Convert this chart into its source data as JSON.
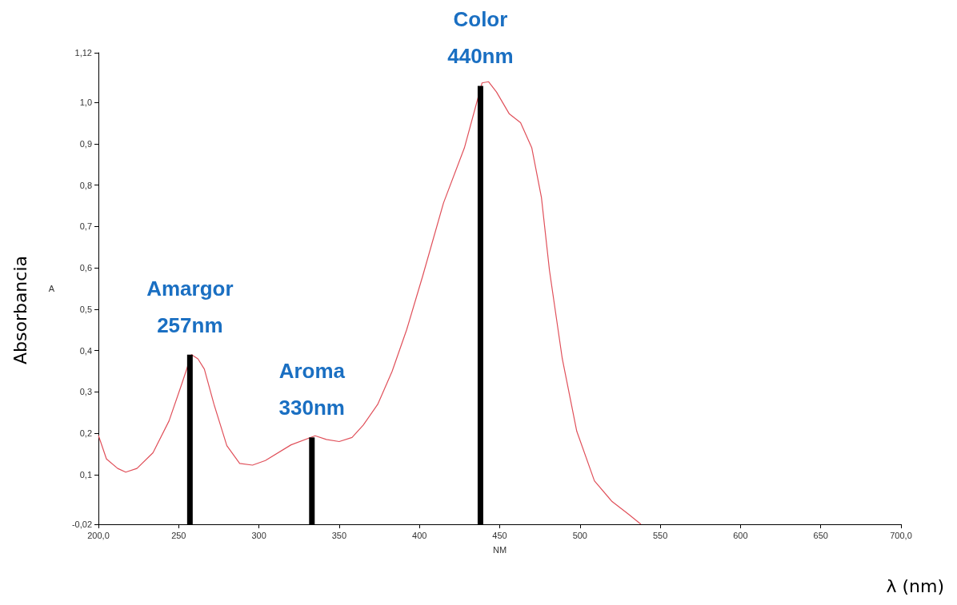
{
  "chart_data": {
    "type": "line",
    "xlabel": "NM",
    "ylabel": "A",
    "marker": "none",
    "xlim": [
      200,
      700
    ],
    "xticks": [
      {
        "value": 200,
        "label": "200,0"
      },
      250,
      300,
      350,
      400,
      450,
      500,
      550,
      600,
      650,
      {
        "value": 700,
        "label": "700,0"
      }
    ],
    "ylim": [
      -0.02,
      1.12
    ],
    "yticks": [
      {
        "value": -0.02,
        "label": "-0,02"
      },
      {
        "value": 0.1,
        "label": "0,1"
      },
      {
        "value": 0.2,
        "label": "0,2"
      },
      {
        "value": 0.3,
        "label": "0,3"
      },
      {
        "value": 0.4,
        "label": "0,4"
      },
      {
        "value": 0.5,
        "label": "0,5"
      },
      {
        "value": 0.6,
        "label": "0,6"
      },
      {
        "value": 0.7,
        "label": "0,7"
      },
      {
        "value": 0.8,
        "label": "0,8"
      },
      {
        "value": 0.9,
        "label": "0,9"
      },
      {
        "value": 1.0,
        "label": "1,0"
      },
      {
        "value": 1.12,
        "label": "1,12"
      }
    ],
    "series": [
      {
        "color": "#e0505a",
        "x": [
          200,
          205,
          212,
          217,
          224,
          234,
          244,
          252,
          258,
          262,
          266,
          272,
          280,
          288,
          296,
          304,
          320,
          335,
          342,
          350,
          358,
          365,
          374,
          383,
          392,
          402,
          415,
          428,
          439,
          443,
          448,
          456,
          463,
          470,
          476,
          481,
          489,
          498,
          509,
          520,
          530,
          538
        ],
        "values": [
          0.195,
          0.138,
          0.115,
          0.106,
          0.115,
          0.153,
          0.23,
          0.32,
          0.39,
          0.38,
          0.355,
          0.27,
          0.17,
          0.127,
          0.123,
          0.134,
          0.172,
          0.194,
          0.185,
          0.18,
          0.19,
          0.22,
          0.27,
          0.35,
          0.45,
          0.58,
          0.757,
          0.89,
          1.047,
          1.05,
          1.025,
          0.972,
          0.951,
          0.89,
          0.77,
          0.594,
          0.38,
          0.205,
          0.085,
          0.035,
          0.005,
          -0.02
        ]
      },
      {
        "type": "bar",
        "color": "#000000",
        "x": [
          257,
          333,
          438
        ],
        "base": [
          -0.02,
          -0.02,
          -0.02
        ],
        "values": [
          0.41,
          0.21,
          1.06
        ]
      }
    ],
    "annotations": [
      {
        "text": "Amargor\n257nm",
        "x": 257,
        "y": 0.39
      },
      {
        "text": "Aroma\n330nm",
        "x": 333,
        "y": 0.19
      },
      {
        "text": "Color\n440nm",
        "x": 438,
        "y": 1.04
      },
      "Absorbancia",
      "λ (nm)"
    ]
  }
}
